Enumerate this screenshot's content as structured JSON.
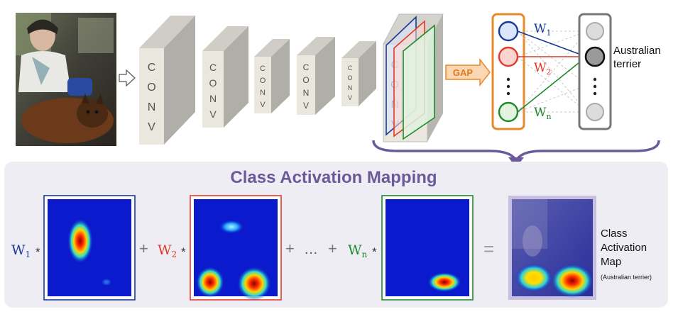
{
  "conv_label": [
    "C",
    "O",
    "N",
    "V"
  ],
  "gap_label": "GAP",
  "weights_top": {
    "w1": "W",
    "w1_sub": "1",
    "w2": "W",
    "w2_sub": "2",
    "wn": "W",
    "wn_sub": "n"
  },
  "output_label": [
    "Australian",
    "terrier"
  ],
  "cam_panel": {
    "title": "Class Activation Mapping",
    "w1": "W",
    "w1_sub": "1",
    "w2": "W",
    "w2_sub": "2",
    "wn": "W",
    "wn_sub": "n",
    "times": "*",
    "plus": "+",
    "ellipsis": "…",
    "equals": "=",
    "result_label": [
      "Class",
      "Activation",
      "Map"
    ],
    "result_note": "(Australian terrier)"
  },
  "colors": {
    "blue": "#1a3a9a",
    "red": "#e23a2a",
    "green": "#1f8a2a",
    "orange": "#e88a2a",
    "purple": "#6a5a9a",
    "panel_bg": "#efedf4",
    "heatmap_bg": "#0a1acc",
    "conv_face": "#e8e6dc",
    "conv_side": "#c8c6c0"
  },
  "icons": [
    "input-photo-icon",
    "arrow-right-icon",
    "curly-brace-icon",
    "down-arrow-icon"
  ]
}
